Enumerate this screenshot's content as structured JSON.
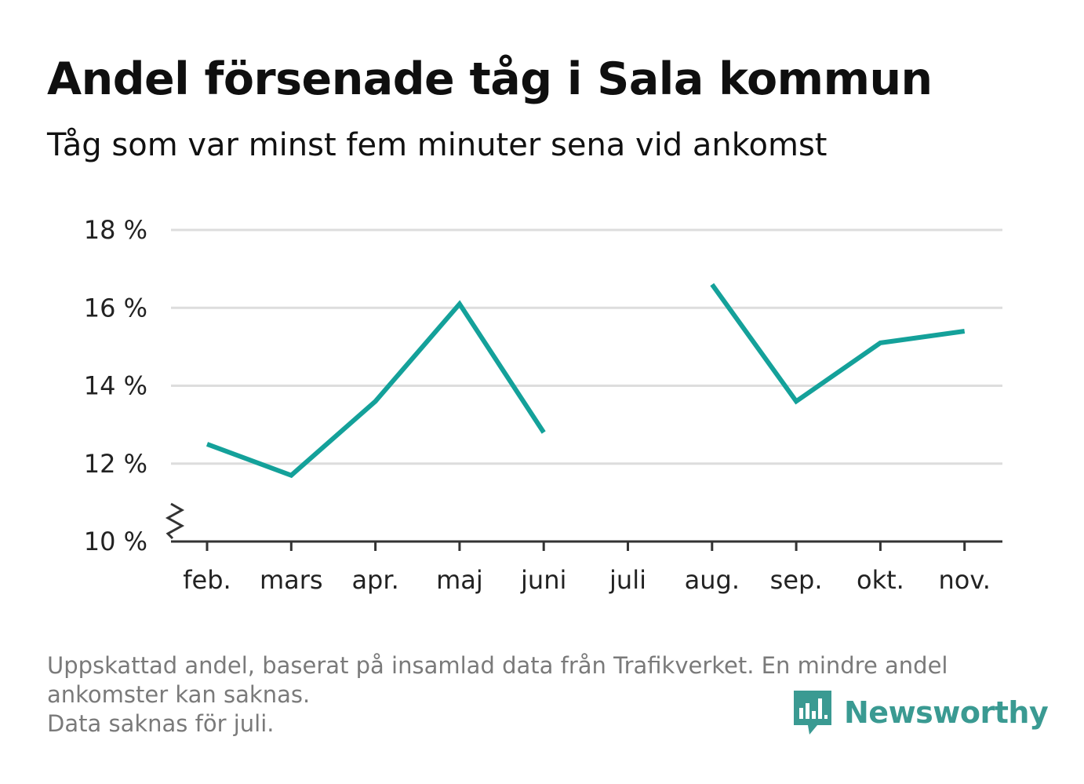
{
  "title": "Andel försenade tåg i Sala kommun",
  "subtitle": "Tåg som var minst fem minuter sena vid ankomst",
  "footnote": {
    "line1": "Uppskattad andel, baserat på insamlad data från Trafikverket. En mindre andel",
    "line2": "ankomster kan saknas.",
    "line3": "Data saknas för juli."
  },
  "logo": {
    "text": "Newsworthy",
    "icon": "newsworthy-logo-icon"
  },
  "colors": {
    "line": "#14a19a",
    "grid": "#dddddd",
    "axis": "#333333",
    "logo": "#3a9a92"
  },
  "chart_data": {
    "type": "line",
    "categories": [
      "feb.",
      "mars",
      "apr.",
      "maj",
      "juni",
      "juli",
      "aug.",
      "sep.",
      "okt.",
      "nov."
    ],
    "series": [
      {
        "values": [
          12.5,
          11.7,
          13.6,
          16.1,
          12.8,
          null,
          16.6,
          13.6,
          15.1,
          15.4
        ]
      }
    ],
    "yticks": [
      10,
      12,
      14,
      16,
      18
    ],
    "ytick_labels": [
      "10 %",
      "12 %",
      "14 %",
      "16 %",
      "18 %"
    ],
    "ylim": [
      10,
      18
    ],
    "y_axis_break": true,
    "grid": true,
    "xlabel": "",
    "ylabel": ""
  }
}
